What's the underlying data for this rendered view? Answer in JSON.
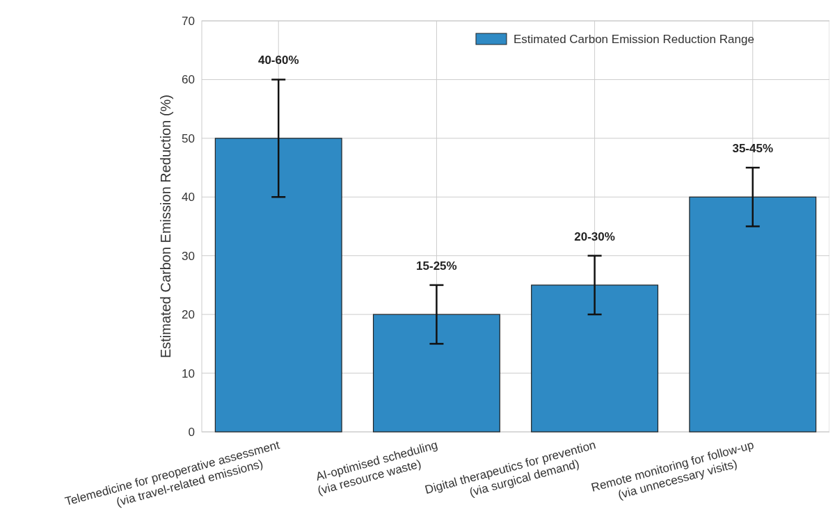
{
  "chart_data": {
    "type": "bar",
    "ylabel": "Estimated Carbon Emission Reduction (%)",
    "categories": [
      "Telemedicine for preoperative assessment\n(via travel-related emissions)",
      "AI-optimised scheduling\n(via resource waste)",
      "Digital therapeutics for prevention\n(via surgical demand)",
      "Remote monitoring for follow-up\n(via unnecessary visits)"
    ],
    "series": [
      {
        "name": "Estimated Carbon Emission Reduction Range",
        "color": "#2f8ac4",
        "values": [
          50,
          20,
          25,
          40
        ],
        "errors": [
          10,
          5,
          5,
          5
        ]
      }
    ],
    "annotations": [
      {
        "text": "40-60%",
        "x": "Telemedicine for preoperative assessment\n(via travel-related emissions)",
        "y": 60
      },
      {
        "text": "15-25%",
        "x": "AI-optimised scheduling\n(via resource waste)",
        "y": 25
      },
      {
        "text": "20-30%",
        "x": "Digital therapeutics for prevention\n(via surgical demand)",
        "y": 30
      },
      {
        "text": "35-45%",
        "x": "Remote monitoring for follow-up\n(via unnecessary visits)",
        "y": 45
      }
    ],
    "ylim": [
      0,
      70
    ],
    "yticks": [
      0,
      10,
      20,
      30,
      40,
      50,
      60,
      70
    ],
    "grid": true,
    "legend": "top right"
  }
}
